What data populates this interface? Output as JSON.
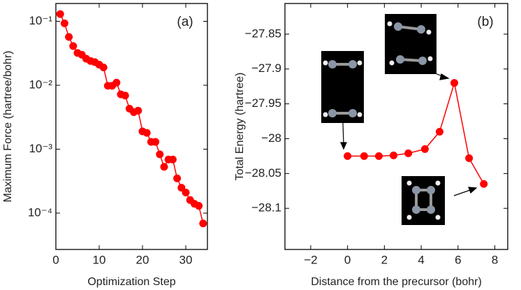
{
  "chart_data": [
    {
      "type": "line",
      "annotation": "(a)",
      "xlabel": "Optimization Step",
      "ylabel": "Maximum Force (hartree/bohr)",
      "yscale": "log",
      "color": "#ff0000",
      "x": [
        1,
        2,
        3,
        4,
        5,
        6,
        7,
        8,
        9,
        10,
        11,
        12,
        13,
        14,
        15,
        16,
        17,
        18,
        19,
        20,
        21,
        22,
        23,
        24,
        25,
        26,
        27,
        28,
        29,
        30,
        31,
        32,
        33,
        34
      ],
      "values": [
        0.13,
        0.093,
        0.057,
        0.041,
        0.032,
        0.03,
        0.026,
        0.024,
        0.023,
        0.021,
        0.019,
        0.0098,
        0.0098,
        0.011,
        0.0072,
        0.0069,
        0.0043,
        0.0038,
        0.004,
        0.0019,
        0.0018,
        0.0013,
        0.0013,
        0.00083,
        0.00053,
        0.00069,
        0.00069,
        0.00035,
        0.00025,
        0.00021,
        0.00016,
        0.00014,
        0.00013,
        6.9e-05
      ],
      "xlim": [
        0,
        35
      ],
      "xticks": [
        0,
        10,
        20,
        30
      ],
      "ylim": [
        2.7e-05,
        0.19
      ],
      "yticks": [
        {
          "value": 0.1,
          "label": "10⁻¹"
        },
        {
          "value": 0.01,
          "label": "10⁻²"
        },
        {
          "value": 0.001,
          "label": "10⁻³"
        },
        {
          "value": 0.0001,
          "label": "10⁻⁴"
        }
      ]
    },
    {
      "type": "line",
      "annotation": "(b)",
      "xlabel": "Distance from the precursor (bohr)",
      "ylabel": "Total Energy (hartree)",
      "yscale": "linear",
      "color": "#ff0000",
      "x": [
        0,
        0.9,
        1.7,
        2.5,
        3.3,
        4.2,
        5.0,
        5.8,
        6.6,
        7.4
      ],
      "values": [
        -28.025,
        -28.025,
        -28.025,
        -28.024,
        -28.021,
        -28.015,
        -27.99,
        -27.92,
        -28.028,
        -28.065
      ],
      "xlim": [
        -3.4,
        8.7
      ],
      "xticks": [
        {
          "value": -2,
          "label": "−2"
        },
        0,
        2,
        4,
        6,
        8
      ],
      "ylim": [
        -28.159,
        -27.806
      ],
      "yticks": [
        {
          "value": -27.85,
          "label": "−27.85"
        },
        {
          "value": -27.9,
          "label": "−27.9"
        },
        {
          "value": -27.95,
          "label": "−27.95"
        },
        {
          "value": -28,
          "label": "−28"
        },
        {
          "value": -28.05,
          "label": "−28.05"
        },
        {
          "value": -28.1,
          "label": "−28.1"
        }
      ]
    }
  ]
}
